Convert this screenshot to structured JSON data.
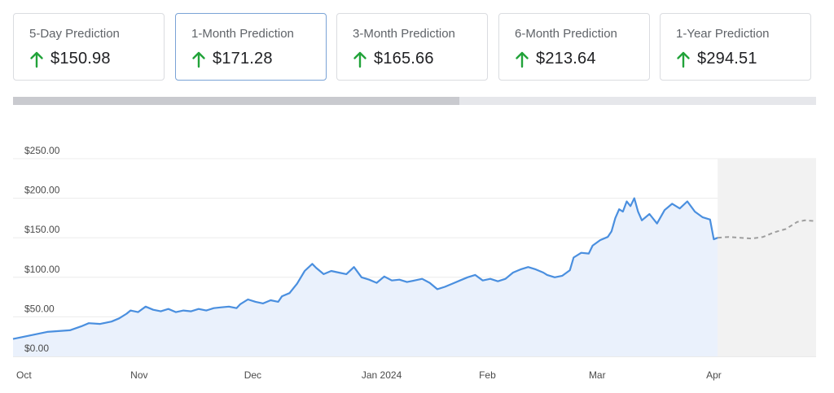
{
  "predictions": [
    {
      "label": "5-Day Prediction",
      "value": "$150.98",
      "direction": "up",
      "active": false
    },
    {
      "label": "1-Month Prediction",
      "value": "$171.28",
      "direction": "up",
      "active": true
    },
    {
      "label": "3-Month Prediction",
      "value": "$165.66",
      "direction": "up",
      "active": false
    },
    {
      "label": "6-Month Prediction",
      "value": "$213.64",
      "direction": "up",
      "active": false
    },
    {
      "label": "1-Year Prediction",
      "value": "$294.51",
      "direction": "up",
      "active": false
    }
  ],
  "colors": {
    "up_arrow": "#22a33a",
    "history_line": "#4a8fdf",
    "history_fill": "#eaf1fc",
    "forecast_line": "#9e9e9e",
    "forecast_fill": "#f2f2f2",
    "grid": "#ececec"
  },
  "chart_data": {
    "type": "area",
    "title": "",
    "xlabel": "",
    "ylabel": "",
    "ylim": [
      0,
      250
    ],
    "xlim": [
      "2023-10-01",
      "2024-04-30"
    ],
    "y_ticks": [
      "$0.00",
      "$50.00",
      "$100.00",
      "$150.00",
      "$200.00",
      "$250.00"
    ],
    "y_tick_values": [
      0,
      50,
      100,
      150,
      200,
      250
    ],
    "x_ticks": [
      "Oct",
      "Nov",
      "Dec",
      "Jan 2024",
      "Feb",
      "Mar",
      "Apr"
    ],
    "x_tick_dates": [
      "2023-10-01",
      "2023-11-01",
      "2023-12-01",
      "2024-01-01",
      "2024-02-01",
      "2024-03-01",
      "2024-04-01"
    ],
    "grid": true,
    "series": [
      {
        "role": "history",
        "points": [
          [
            "2023-10-01",
            22
          ],
          [
            "2023-10-04",
            25
          ],
          [
            "2023-10-07",
            28
          ],
          [
            "2023-10-10",
            31
          ],
          [
            "2023-10-13",
            32
          ],
          [
            "2023-10-16",
            33
          ],
          [
            "2023-10-19",
            38
          ],
          [
            "2023-10-21",
            42
          ],
          [
            "2023-10-24",
            41
          ],
          [
            "2023-10-27",
            44
          ],
          [
            "2023-10-29",
            48
          ],
          [
            "2023-10-31",
            54
          ],
          [
            "2023-11-01",
            58
          ],
          [
            "2023-11-03",
            56
          ],
          [
            "2023-11-05",
            63
          ],
          [
            "2023-11-07",
            59
          ],
          [
            "2023-11-09",
            57
          ],
          [
            "2023-11-11",
            60
          ],
          [
            "2023-11-13",
            56
          ],
          [
            "2023-11-15",
            58
          ],
          [
            "2023-11-17",
            57
          ],
          [
            "2023-11-19",
            60
          ],
          [
            "2023-11-21",
            58
          ],
          [
            "2023-11-23",
            61
          ],
          [
            "2023-11-25",
            62
          ],
          [
            "2023-11-27",
            63
          ],
          [
            "2023-11-29",
            61
          ],
          [
            "2023-11-30",
            66
          ],
          [
            "2023-12-02",
            72
          ],
          [
            "2023-12-04",
            69
          ],
          [
            "2023-12-06",
            67
          ],
          [
            "2023-12-08",
            71
          ],
          [
            "2023-12-10",
            69
          ],
          [
            "2023-12-11",
            76
          ],
          [
            "2023-12-13",
            80
          ],
          [
            "2023-12-15",
            92
          ],
          [
            "2023-12-17",
            108
          ],
          [
            "2023-12-19",
            117
          ],
          [
            "2023-12-20",
            112
          ],
          [
            "2023-12-22",
            104
          ],
          [
            "2023-12-24",
            108
          ],
          [
            "2023-12-26",
            106
          ],
          [
            "2023-12-28",
            104
          ],
          [
            "2023-12-30",
            113
          ],
          [
            "2024-01-01",
            100
          ],
          [
            "2024-01-03",
            97
          ],
          [
            "2024-01-05",
            93
          ],
          [
            "2024-01-07",
            101
          ],
          [
            "2024-01-09",
            96
          ],
          [
            "2024-01-11",
            97
          ],
          [
            "2024-01-13",
            94
          ],
          [
            "2024-01-15",
            96
          ],
          [
            "2024-01-17",
            98
          ],
          [
            "2024-01-19",
            93
          ],
          [
            "2024-01-21",
            85
          ],
          [
            "2024-01-23",
            88
          ],
          [
            "2024-01-25",
            92
          ],
          [
            "2024-01-27",
            96
          ],
          [
            "2024-01-29",
            100
          ],
          [
            "2024-01-31",
            103
          ],
          [
            "2024-02-02",
            96
          ],
          [
            "2024-02-04",
            98
          ],
          [
            "2024-02-06",
            95
          ],
          [
            "2024-02-08",
            98
          ],
          [
            "2024-02-10",
            106
          ],
          [
            "2024-02-12",
            110
          ],
          [
            "2024-02-14",
            113
          ],
          [
            "2024-02-16",
            110
          ],
          [
            "2024-02-18",
            106
          ],
          [
            "2024-02-19",
            103
          ],
          [
            "2024-02-21",
            100
          ],
          [
            "2024-02-23",
            102
          ],
          [
            "2024-02-25",
            109
          ],
          [
            "2024-02-26",
            125
          ],
          [
            "2024-02-28",
            131
          ],
          [
            "2024-03-01",
            130
          ],
          [
            "2024-03-02",
            140
          ],
          [
            "2024-03-04",
            147
          ],
          [
            "2024-03-06",
            151
          ],
          [
            "2024-03-07",
            158
          ],
          [
            "2024-03-08",
            175
          ],
          [
            "2024-03-09",
            186
          ],
          [
            "2024-03-10",
            183
          ],
          [
            "2024-03-11",
            196
          ],
          [
            "2024-03-12",
            190
          ],
          [
            "2024-03-13",
            200
          ],
          [
            "2024-03-14",
            183
          ],
          [
            "2024-03-15",
            172
          ],
          [
            "2024-03-17",
            180
          ],
          [
            "2024-03-19",
            168
          ],
          [
            "2024-03-21",
            185
          ],
          [
            "2024-03-23",
            193
          ],
          [
            "2024-03-25",
            187
          ],
          [
            "2024-03-27",
            196
          ],
          [
            "2024-03-29",
            183
          ],
          [
            "2024-03-31",
            176
          ],
          [
            "2024-04-02",
            173
          ],
          [
            "2024-04-03",
            148
          ],
          [
            "2024-04-04",
            150
          ]
        ]
      },
      {
        "role": "forecast",
        "points": [
          [
            "2024-04-04",
            150
          ],
          [
            "2024-04-07",
            151
          ],
          [
            "2024-04-10",
            150
          ],
          [
            "2024-04-13",
            149
          ],
          [
            "2024-04-16",
            151
          ],
          [
            "2024-04-19",
            157
          ],
          [
            "2024-04-22",
            161
          ],
          [
            "2024-04-25",
            170
          ],
          [
            "2024-04-27",
            172
          ],
          [
            "2024-04-30",
            171
          ]
        ]
      }
    ]
  }
}
